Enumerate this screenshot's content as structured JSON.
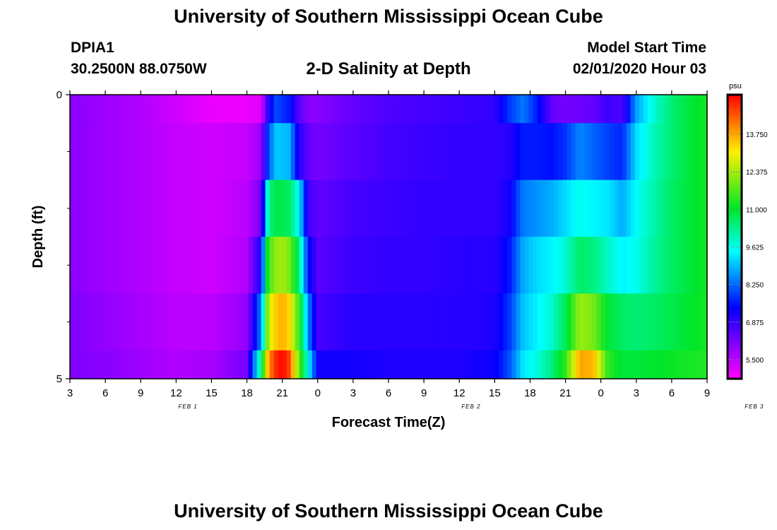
{
  "page": {
    "title_top": "University of Southern Mississippi Ocean Cube",
    "title_bottom": "University of Southern Mississippi Ocean Cube",
    "station_id": "DPIA1",
    "station_coords": "30.2500N 88.0750W",
    "chart_title": "2-D Salinity at Depth",
    "model_label": "Model Start Time",
    "model_time": "02/01/2020 Hour 03"
  },
  "chart_data": {
    "type": "heatmap",
    "title": "2-D Salinity at Depth",
    "xlabel": "Forecast Time(Z)",
    "ylabel": "Depth (ft)",
    "x_tick_labels": [
      "3",
      "6",
      "9",
      "12",
      "15",
      "18",
      "21",
      "0",
      "3",
      "6",
      "9",
      "12",
      "15",
      "18",
      "21",
      "0",
      "3",
      "6",
      "9"
    ],
    "day_labels": [
      {
        "text": "FEB 1",
        "hour": 13
      },
      {
        "text": "FEB 2",
        "hour": 37
      },
      {
        "text": "FEB 3",
        "hour": 61
      }
    ],
    "x_range_hours": [
      3,
      57
    ],
    "y_range_ft": [
      0,
      5
    ],
    "y_tick_labels": [
      "0",
      "5"
    ],
    "y_minor_ticks_ft": [
      1,
      2,
      3,
      4
    ],
    "colorbar": {
      "unit": "psu",
      "range": [
        4.8,
        15.2
      ],
      "tick_values": [
        5.5,
        6.875,
        8.25,
        9.625,
        11.0,
        12.375,
        13.75
      ],
      "tick_labels": [
        "5.500",
        "6.875",
        "8.250",
        "9.625",
        "11.000",
        "12.375",
        "13.750"
      ]
    },
    "rows_depth_ft": [
      {
        "top": 0.0,
        "bottom": 0.5
      },
      {
        "top": 0.5,
        "bottom": 1.5
      },
      {
        "top": 1.5,
        "bottom": 2.5
      },
      {
        "top": 2.5,
        "bottom": 3.5
      },
      {
        "top": 3.5,
        "bottom": 4.5
      },
      {
        "top": 4.5,
        "bottom": 5.0
      }
    ],
    "profiles": [
      {
        "h": 3,
        "v": [
          6.0,
          6.0,
          6.0,
          6.0,
          6.1,
          6.1
        ]
      },
      {
        "h": 6,
        "v": [
          5.8,
          5.8,
          5.8,
          5.8,
          5.9,
          6.0
        ]
      },
      {
        "h": 9,
        "v": [
          5.6,
          5.6,
          5.6,
          5.6,
          5.7,
          5.8
        ]
      },
      {
        "h": 12,
        "v": [
          5.3,
          5.4,
          5.4,
          5.4,
          5.5,
          5.6
        ]
      },
      {
        "h": 15,
        "v": [
          5.0,
          5.3,
          5.3,
          5.3,
          5.5,
          5.7
        ]
      },
      {
        "h": 18,
        "v": [
          5.0,
          5.4,
          5.5,
          5.6,
          5.9,
          6.2
        ]
      },
      {
        "h": 19.2,
        "v": [
          5.1,
          5.8,
          6.2,
          7.2,
          8.5,
          10.5
        ]
      },
      {
        "h": 19.8,
        "v": [
          7.0,
          8.0,
          10.2,
          11.5,
          12.5,
          13.8
        ]
      },
      {
        "h": 20.4,
        "v": [
          8.0,
          9.0,
          10.8,
          12.2,
          13.4,
          14.8
        ]
      },
      {
        "h": 21,
        "v": [
          7.8,
          9.0,
          10.8,
          12.4,
          13.7,
          15.2
        ]
      },
      {
        "h": 21.6,
        "v": [
          7.6,
          8.9,
          10.6,
          12.0,
          13.3,
          14.6
        ]
      },
      {
        "h": 22.4,
        "v": [
          6.5,
          7.0,
          9.5,
          10.5,
          11.5,
          12.0
        ]
      },
      {
        "h": 23.2,
        "v": [
          6.0,
          6.4,
          6.8,
          7.5,
          8.5,
          9.5
        ]
      },
      {
        "h": 24,
        "v": [
          6.0,
          6.2,
          6.4,
          6.5,
          6.7,
          7.2
        ]
      },
      {
        "h": 27,
        "v": [
          6.4,
          6.5,
          6.7,
          6.8,
          7.0,
          7.2
        ]
      },
      {
        "h": 30,
        "v": [
          6.6,
          6.7,
          6.8,
          6.9,
          7.0,
          7.1
        ]
      },
      {
        "h": 33,
        "v": [
          6.7,
          6.8,
          6.9,
          6.9,
          7.0,
          7.1
        ]
      },
      {
        "h": 36,
        "v": [
          6.8,
          6.9,
          6.9,
          7.0,
          7.0,
          7.1
        ]
      },
      {
        "h": 39,
        "v": [
          6.9,
          6.9,
          6.9,
          7.0,
          7.1,
          7.3
        ]
      },
      {
        "h": 40.2,
        "v": [
          7.8,
          7.0,
          7.2,
          7.5,
          7.8,
          8.0
        ]
      },
      {
        "h": 41.4,
        "v": [
          8.4,
          7.6,
          8.4,
          8.8,
          9.0,
          9.3
        ]
      },
      {
        "h": 42.6,
        "v": [
          7.6,
          7.6,
          8.6,
          9.2,
          9.4,
          9.7
        ]
      },
      {
        "h": 43.8,
        "v": [
          6.4,
          7.5,
          8.8,
          9.4,
          9.8,
          10.4
        ]
      },
      {
        "h": 45,
        "v": [
          6.2,
          7.8,
          9.2,
          9.8,
          10.7,
          11.4
        ]
      },
      {
        "h": 46.2,
        "v": [
          6.3,
          8.5,
          9.6,
          10.6,
          12.3,
          13.8
        ]
      },
      {
        "h": 47.4,
        "v": [
          6.4,
          8.2,
          9.4,
          10.4,
          12.0,
          13.6
        ]
      },
      {
        "h": 48.6,
        "v": [
          6.8,
          7.9,
          9.3,
          9.9,
          10.9,
          11.4
        ]
      },
      {
        "h": 49.8,
        "v": [
          6.6,
          7.7,
          8.8,
          9.4,
          10.6,
          10.9
        ]
      },
      {
        "h": 51,
        "v": [
          8.7,
          9.2,
          9.5,
          9.6,
          10.5,
          10.9
        ]
      },
      {
        "h": 52.5,
        "v": [
          9.8,
          10.0,
          10.1,
          10.2,
          10.6,
          11.0
        ]
      },
      {
        "h": 54,
        "v": [
          10.5,
          10.5,
          10.6,
          10.6,
          10.8,
          11.1
        ]
      },
      {
        "h": 55.5,
        "v": [
          10.9,
          10.9,
          10.9,
          10.9,
          11.0,
          11.2
        ]
      },
      {
        "h": 57,
        "v": [
          11.2,
          11.2,
          11.2,
          11.2,
          11.2,
          11.3
        ]
      }
    ]
  }
}
